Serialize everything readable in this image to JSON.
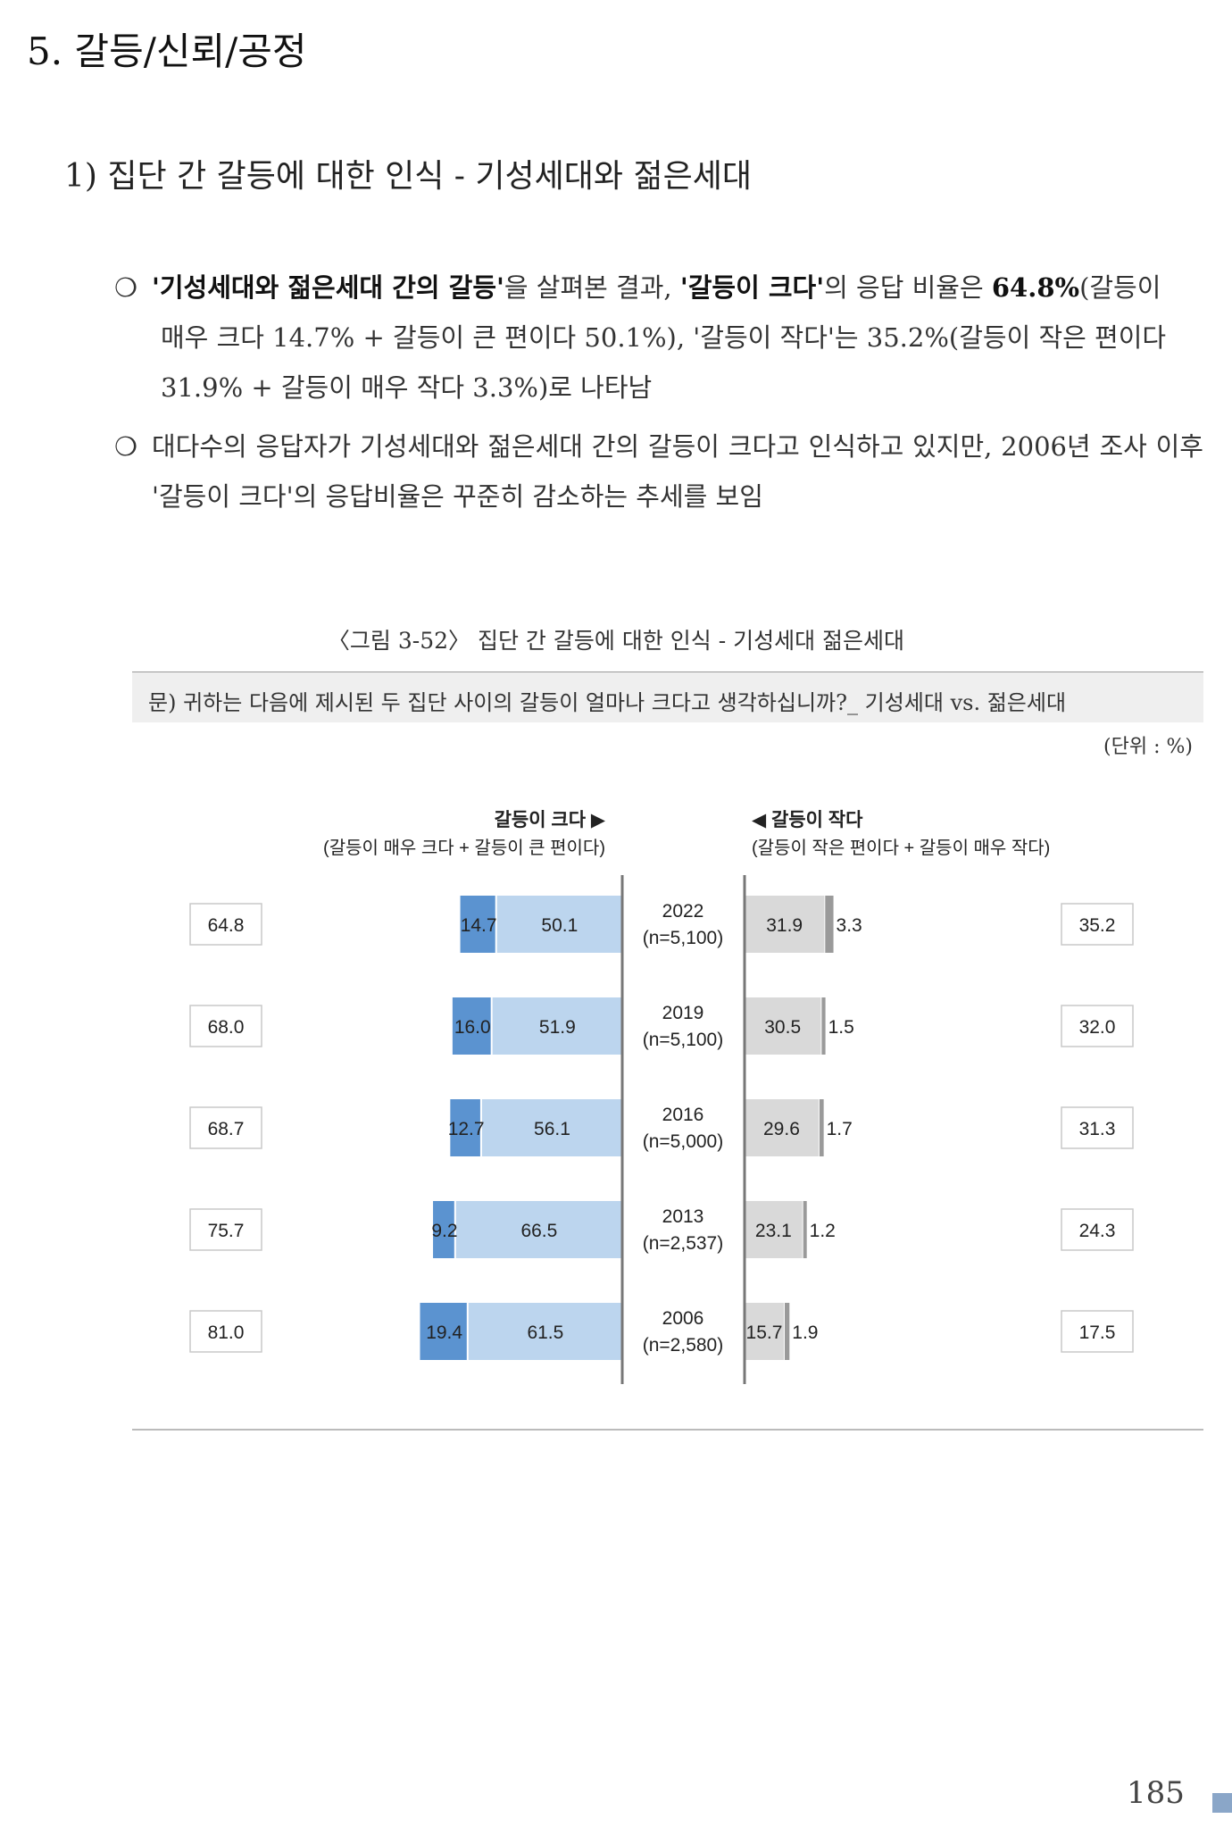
{
  "section_title": "5. 갈등/신뢰/공정",
  "subsection_title": "1) 집단 간 갈등에 대한 인식 - 기성세대와 젊은세대",
  "bullets": {
    "mark": "❍",
    "b1_bold1": "'기성세대와 젊은세대 간의 갈등'",
    "b1_t1": "을 살펴본 결과, ",
    "b1_bold2": "'갈등이 크다'",
    "b1_t2": "의 응답 비율은 ",
    "b1_bold3": "64.8%",
    "b1_t3": "(갈등이",
    "b1_line2": "매우 크다 14.7% + 갈등이 큰 편이다 50.1%), '갈등이 작다'는 35.2%(갈등이 작은 편이다",
    "b1_line3": "31.9% + 갈등이 매우 작다 3.3%)로 나타남",
    "b2_text": "대다수의 응답자가 기성세대와 젊은세대 간의 갈등이 크다고 인식하고 있지만, 2006년 조사 이후 '갈등이 크다'의 응답비율은 꾸준히 감소하는 추세를 보임"
  },
  "figure": {
    "caption": "〈그림 3-52〉 집단 간 갈등에 대한 인식 - 기성세대 젊은세대",
    "question": "문) 귀하는 다음에 제시된 두 집단 사이의 갈등이 얼마나 크다고 생각하십니까?_ 기성세대 vs. 젊은세대",
    "unit": "(단위 : %)"
  },
  "page_number": "185",
  "chart_data": {
    "type": "bar",
    "orientation": "horizontal-diverging",
    "left_header": "갈등이 크다 ▶",
    "left_subheader": "(갈등이 매우 크다 + 갈등이 큰 편이다)",
    "right_header": "◀ 갈등이 작다",
    "right_subheader": "(갈등이 작은 편이다 + 갈등이 매우 작다)",
    "rows": [
      {
        "year": "2022",
        "n": "(n=5,100)",
        "very_large": 14.7,
        "large": 50.1,
        "small": 31.9,
        "very_small": 3.3,
        "total_large": "64.8",
        "total_small": "35.2"
      },
      {
        "year": "2019",
        "n": "(n=5,100)",
        "very_large": 16.0,
        "large": 51.9,
        "small": 30.5,
        "very_small": 1.5,
        "total_large": "68.0",
        "total_small": "32.0"
      },
      {
        "year": "2016",
        "n": "(n=5,000)",
        "very_large": 12.7,
        "large": 56.1,
        "small": 29.6,
        "very_small": 1.7,
        "total_large": "68.7",
        "total_small": "31.3"
      },
      {
        "year": "2013",
        "n": "(n=2,537)",
        "very_large": 9.2,
        "large": 66.5,
        "small": 23.1,
        "very_small": 1.2,
        "total_large": "75.7",
        "total_small": "24.3"
      },
      {
        "year": "2006",
        "n": "(n=2,580)",
        "very_large": 19.4,
        "large": 61.5,
        "small": 15.7,
        "very_small": 1.9,
        "total_large": "81.0",
        "total_small": "17.5"
      }
    ],
    "colors": {
      "very_large": "#5b93d0",
      "large": "#bcd5ee",
      "small": "#d9d9d9",
      "very_small": "#9a9a9a"
    }
  }
}
